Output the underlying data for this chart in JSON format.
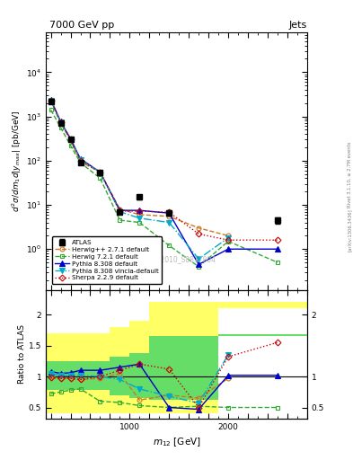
{
  "title_left": "7000 GeV pp",
  "title_right": "Jets",
  "watermark": "ATLAS_2010_S8817804",
  "right_label": "Rivet 3.1.10, ≥ 2.7M events",
  "arxiv_label": "[arXiv:1306.3436]",
  "x_vals": [
    200,
    300,
    400,
    500,
    700,
    900,
    1100,
    1400,
    1700,
    2000,
    2500
  ],
  "x_edges": [
    150,
    250,
    350,
    450,
    600,
    800,
    1000,
    1200,
    1600,
    1900,
    2200,
    2800
  ],
  "atlas_y": [
    2200,
    720,
    300,
    90,
    55,
    7,
    15,
    6.5,
    null,
    null,
    4.5
  ],
  "atlas_yerr": [
    150,
    50,
    22,
    7,
    4,
    0.7,
    2,
    0.9,
    null,
    null,
    0.7
  ],
  "herwig271_y": [
    2200,
    700,
    290,
    95,
    55,
    8,
    6,
    5.5,
    3.0,
    2.0,
    null
  ],
  "herwig721_y": [
    1400,
    560,
    220,
    90,
    40,
    4.5,
    4.0,
    1.2,
    0.4,
    1.5,
    0.5
  ],
  "pythia8308_y": [
    2400,
    760,
    310,
    110,
    55,
    7.5,
    7.5,
    6.5,
    0.45,
    1.0,
    1.0
  ],
  "pythia8308v_y": [
    2300,
    730,
    305,
    105,
    55,
    7.0,
    5.0,
    4.0,
    0.6,
    1.8,
    null
  ],
  "sherpa229_y": [
    2300,
    750,
    310,
    100,
    55,
    7.2,
    7.2,
    6.8,
    2.2,
    1.6,
    1.6
  ],
  "ratio_herwig271": [
    1.0,
    0.97,
    0.97,
    0.95,
    0.97,
    1.05,
    0.62,
    0.7,
    0.65,
    0.97,
    null
  ],
  "ratio_herwig721": [
    0.72,
    0.75,
    0.78,
    0.8,
    0.6,
    0.58,
    0.53,
    0.5,
    0.52,
    0.5,
    0.5
  ],
  "ratio_pythia8308": [
    1.08,
    1.05,
    1.06,
    1.1,
    1.1,
    1.15,
    1.2,
    0.5,
    0.47,
    1.02,
    1.02
  ],
  "ratio_pythia8308v": [
    1.04,
    1.02,
    1.02,
    1.02,
    1.0,
    0.95,
    0.8,
    0.68,
    0.57,
    1.35,
    null
  ],
  "ratio_sherpa229": [
    0.98,
    0.97,
    0.97,
    0.95,
    1.0,
    1.1,
    1.2,
    1.12,
    0.5,
    1.32,
    1.55
  ],
  "yellow_lo": [
    0.4,
    0.4,
    0.4,
    0.4,
    0.4,
    0.4,
    0.4,
    0.4,
    0.4,
    2.1,
    2.1
  ],
  "yellow_hi": [
    1.7,
    1.7,
    1.7,
    1.7,
    1.7,
    1.8,
    1.9,
    2.2,
    2.2,
    2.2,
    2.2
  ],
  "green_lo": [
    0.78,
    0.78,
    0.78,
    0.78,
    0.78,
    0.7,
    0.65,
    0.62,
    0.62,
    1.65,
    1.65
  ],
  "green_hi": [
    1.25,
    1.25,
    1.25,
    1.25,
    1.25,
    1.32,
    1.38,
    1.65,
    1.65,
    1.68,
    1.68
  ],
  "color_atlas": "#000000",
  "color_herwig271": "#cc7722",
  "color_herwig721": "#33aa33",
  "color_pythia8308": "#0000cc",
  "color_pythia8308v": "#00aacc",
  "color_sherpa229": "#cc0000"
}
